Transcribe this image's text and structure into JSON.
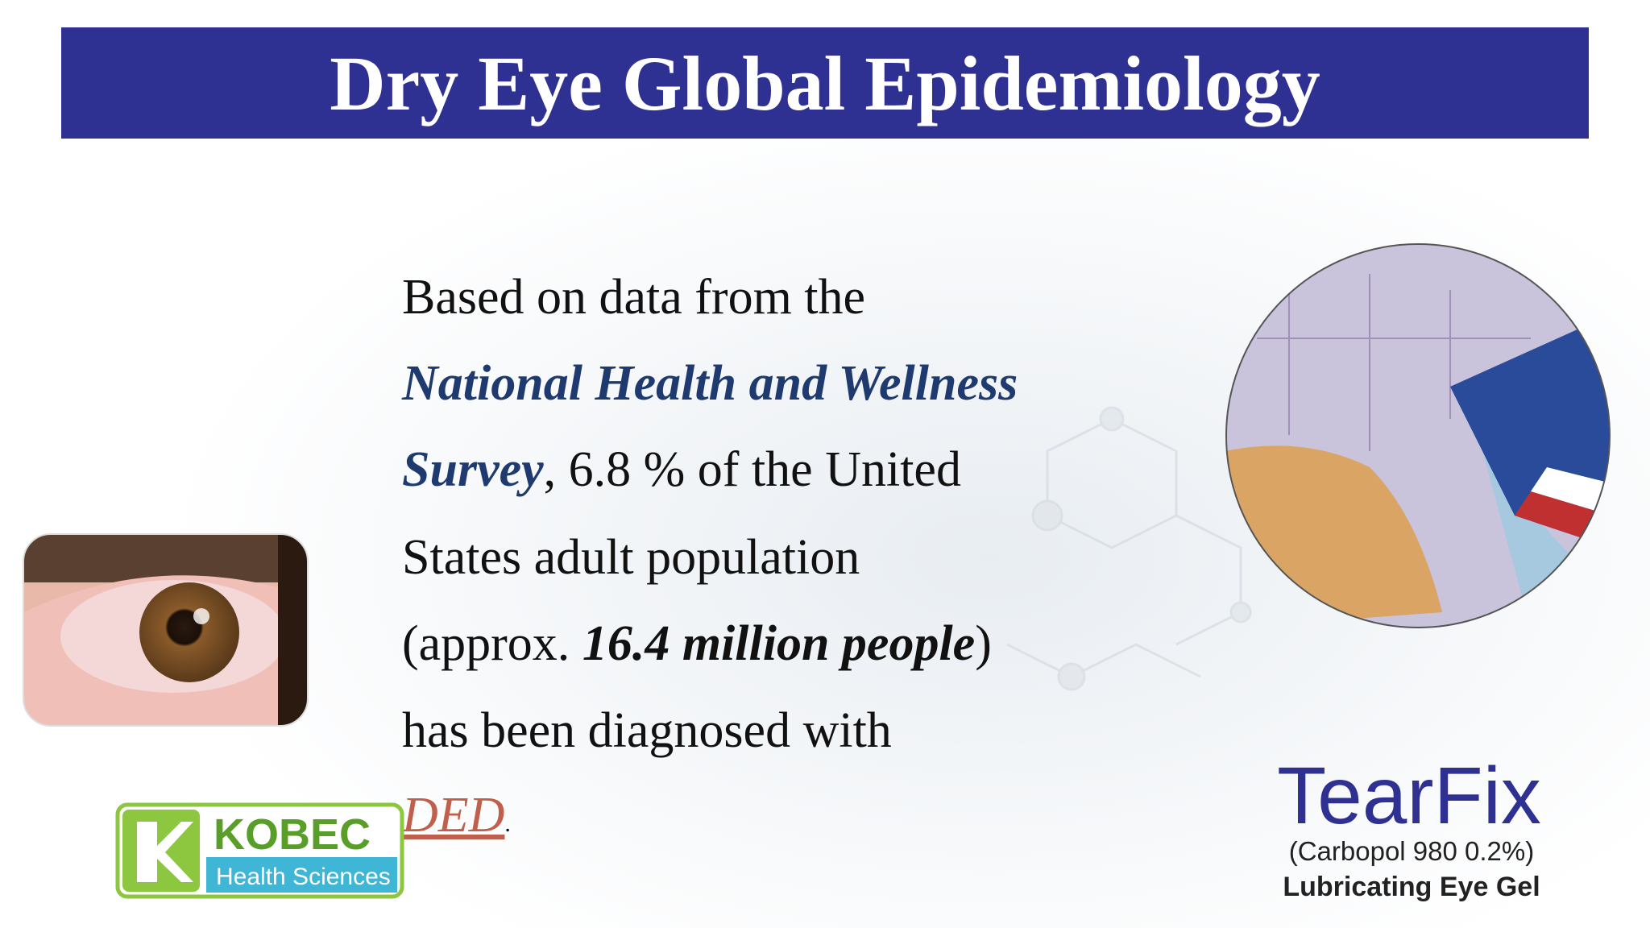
{
  "header": {
    "title": "Dry Eye Global Epidemiology"
  },
  "body": {
    "lines": [
      [
        "Based on data from the"
      ],
      [
        "National Health and Wellness"
      ],
      [
        "Survey",
        ", 6.8 % of the United"
      ],
      [
        "States adult population"
      ],
      [
        "(approx. ",
        "16.4 million people",
        ")"
      ],
      [
        "has been diagnosed with"
      ],
      [
        "DED",
        "."
      ]
    ]
  },
  "logo": {
    "name": "KOBEC",
    "subtitle": "Health Sciences"
  },
  "product": {
    "name": "TearFix",
    "composition": "(Carbopol 980 0.2%)",
    "description": "Lubricating Eye Gel"
  }
}
